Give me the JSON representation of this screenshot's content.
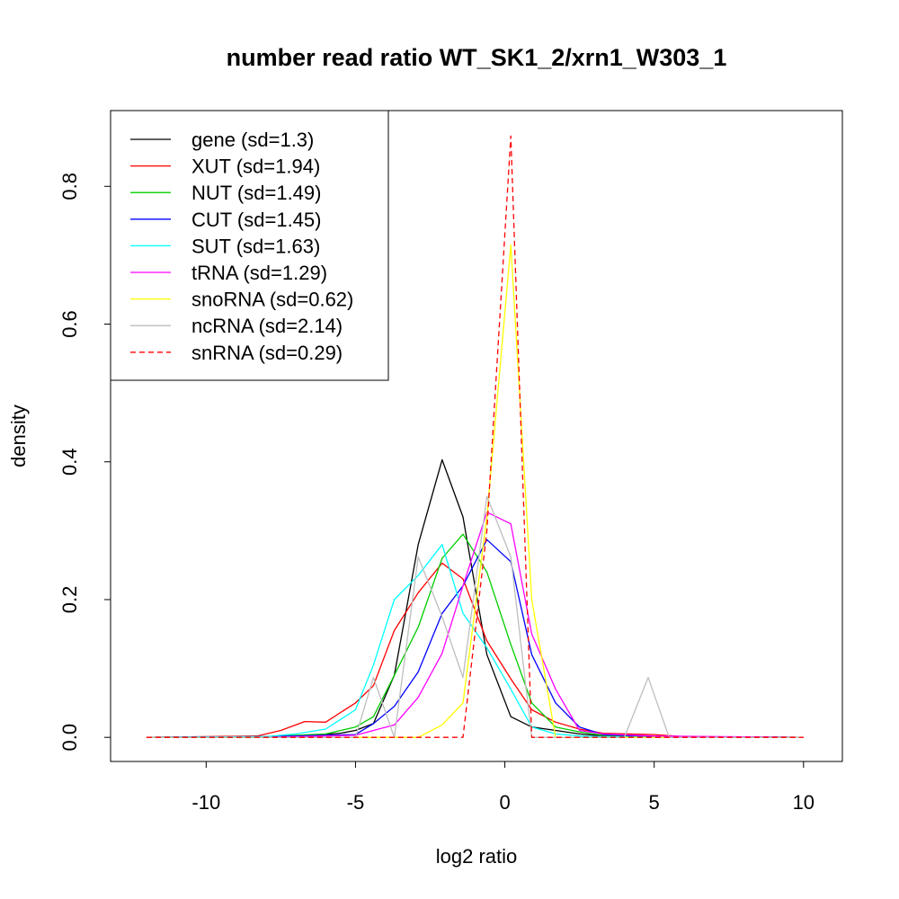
{
  "chart_data": {
    "type": "line",
    "title": "number read ratio WT_SK1_2/xrn1_W303_1",
    "xlabel": "log2 ratio",
    "ylabel": "density",
    "xlim": [
      -13.2,
      11.3
    ],
    "ylim": [
      -0.035,
      0.91
    ],
    "xticks": [
      -10,
      -5,
      0,
      5,
      10
    ],
    "xtick_labels": [
      "-10",
      "-5",
      "0",
      "5",
      "10"
    ],
    "yticks": [
      0.0,
      0.2,
      0.4,
      0.6,
      0.8
    ],
    "ytick_labels": [
      "0.0",
      "0.2",
      "0.4",
      "0.6",
      "0.8"
    ],
    "grid": false,
    "legend_position": "top-left",
    "series": [
      {
        "name": "gene (sd=1.3)",
        "color": "#000000",
        "dashed": false,
        "x": [
          -12,
          -10,
          -8,
          -6.5,
          -5.5,
          -5,
          -4.4,
          -3.7,
          -2.9,
          -2.1,
          -1.4,
          -0.6,
          0.2,
          0.9,
          1.7,
          2.5,
          3.3,
          5,
          10
        ],
        "y": [
          0,
          0,
          0,
          0.003,
          0.006,
          0.01,
          0.02,
          0.09,
          0.28,
          0.403,
          0.32,
          0.12,
          0.03,
          0.015,
          0.01,
          0.005,
          0.002,
          0.001,
          0
        ]
      },
      {
        "name": "XUT (sd=1.94)",
        "color": "#ff0000",
        "dashed": false,
        "x": [
          -12,
          -10,
          -8.3,
          -7.5,
          -6.7,
          -6,
          -5,
          -4.4,
          -3.7,
          -2.9,
          -2.1,
          -1.4,
          -0.6,
          0.2,
          0.9,
          1.7,
          2.5,
          3.3,
          5,
          6,
          10
        ],
        "y": [
          0,
          0.001,
          0.002,
          0.01,
          0.023,
          0.022,
          0.05,
          0.075,
          0.155,
          0.21,
          0.253,
          0.23,
          0.14,
          0.085,
          0.04,
          0.022,
          0.012,
          0.006,
          0.004,
          0.001,
          0
        ]
      },
      {
        "name": "NUT (sd=1.49)",
        "color": "#00cd00",
        "dashed": false,
        "x": [
          -12,
          -8,
          -6,
          -5,
          -4.4,
          -3.7,
          -2.9,
          -2.1,
          -1.4,
          -0.6,
          0.2,
          0.9,
          1.7,
          2.5,
          3.3,
          5,
          10
        ],
        "y": [
          0,
          0.001,
          0.005,
          0.015,
          0.03,
          0.09,
          0.16,
          0.26,
          0.295,
          0.24,
          0.135,
          0.05,
          0.015,
          0.008,
          0.003,
          0.001,
          0
        ]
      },
      {
        "name": "CUT (sd=1.45)",
        "color": "#0000ff",
        "dashed": false,
        "x": [
          -12,
          -8,
          -5,
          -4.4,
          -3.7,
          -2.9,
          -2.1,
          -1.4,
          -0.6,
          0.2,
          0.9,
          1.7,
          2.5,
          3.3,
          5,
          10
        ],
        "y": [
          0,
          0.001,
          0.004,
          0.02,
          0.045,
          0.095,
          0.18,
          0.22,
          0.287,
          0.255,
          0.12,
          0.05,
          0.015,
          0.004,
          0.001,
          0
        ]
      },
      {
        "name": "SUT (sd=1.63)",
        "color": "#00ffff",
        "dashed": false,
        "x": [
          -12,
          -8,
          -7,
          -6,
          -5,
          -4.4,
          -3.7,
          -2.9,
          -2.1,
          -1.4,
          -0.6,
          0.2,
          0.9,
          1.7,
          2.5,
          3.3,
          5,
          10
        ],
        "y": [
          0,
          0.001,
          0.005,
          0.012,
          0.04,
          0.105,
          0.2,
          0.235,
          0.28,
          0.18,
          0.13,
          0.07,
          0.015,
          0.005,
          0.002,
          0.001,
          0,
          0
        ]
      },
      {
        "name": "tRNA (sd=1.29)",
        "color": "#ff00ff",
        "dashed": false,
        "x": [
          -12,
          -8,
          -5,
          -4.4,
          -3.7,
          -2.9,
          -2.1,
          -1.4,
          -0.6,
          0.2,
          0.9,
          1.7,
          2.5,
          3.3,
          5,
          10
        ],
        "y": [
          0,
          0,
          0.003,
          0.01,
          0.018,
          0.058,
          0.122,
          0.22,
          0.327,
          0.31,
          0.15,
          0.07,
          0.01,
          0.005,
          0.002,
          0
        ]
      },
      {
        "name": "snoRNA (sd=0.62)",
        "color": "#ffff00",
        "dashed": false,
        "x": [
          -12,
          -8,
          -5,
          -3.7,
          -2.9,
          -2.1,
          -1.4,
          -0.6,
          0.2,
          0.9,
          1.7,
          2.5,
          5,
          10
        ],
        "y": [
          0,
          0,
          0,
          0,
          0,
          0.018,
          0.05,
          0.32,
          0.715,
          0.2,
          0,
          0,
          0,
          0
        ]
      },
      {
        "name": "ncRNA (sd=2.14)",
        "color": "#bebebe",
        "dashed": false,
        "x": [
          -12,
          -8,
          -5,
          -4.4,
          -3.7,
          -2.9,
          -2.1,
          -1.4,
          -0.6,
          0.2,
          0.9,
          1.7,
          2.5,
          3.3,
          4.0,
          4.8,
          5.5,
          6.2,
          10
        ],
        "y": [
          0,
          0,
          0,
          0.087,
          0,
          0.262,
          0.175,
          0.087,
          0.35,
          0.262,
          0,
          0,
          0,
          0,
          0,
          0.087,
          0,
          0,
          0
        ]
      },
      {
        "name": "snRNA (sd=0.29)",
        "color": "#ff0000",
        "dashed": true,
        "x": [
          -12,
          -1.4,
          -0.6,
          0.2,
          0.9,
          10
        ],
        "y": [
          0,
          0,
          0.3,
          0.873,
          0,
          0
        ]
      }
    ]
  }
}
